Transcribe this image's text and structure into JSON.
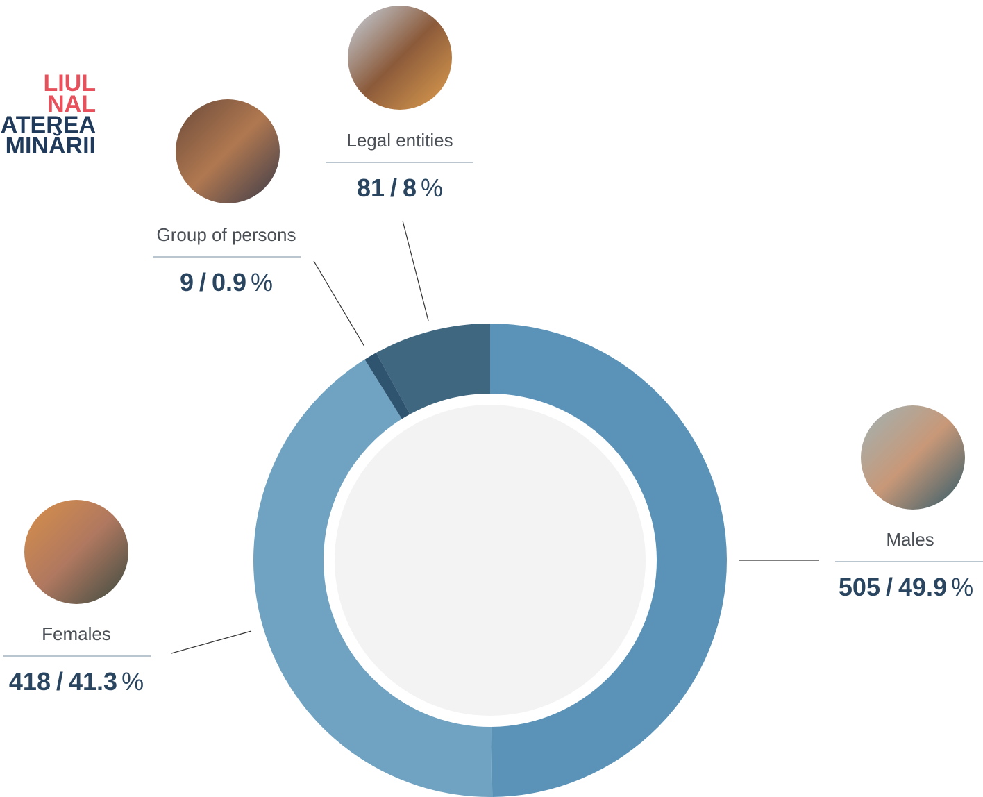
{
  "logo": {
    "lines": [
      "LIUL",
      "NAL",
      "ATEREA",
      "MINĂRII"
    ]
  },
  "chart_data": {
    "type": "donut",
    "categories": [
      "Males",
      "Females",
      "Group of persons",
      "Legal entities"
    ],
    "values": [
      505,
      418,
      9,
      81
    ],
    "percentages": [
      49.9,
      41.3,
      0.9,
      8
    ],
    "separator": "/",
    "unit": "%",
    "colors": [
      "#5b93b8",
      "#70a2c1",
      "#2f5470",
      "#3f6780"
    ]
  }
}
